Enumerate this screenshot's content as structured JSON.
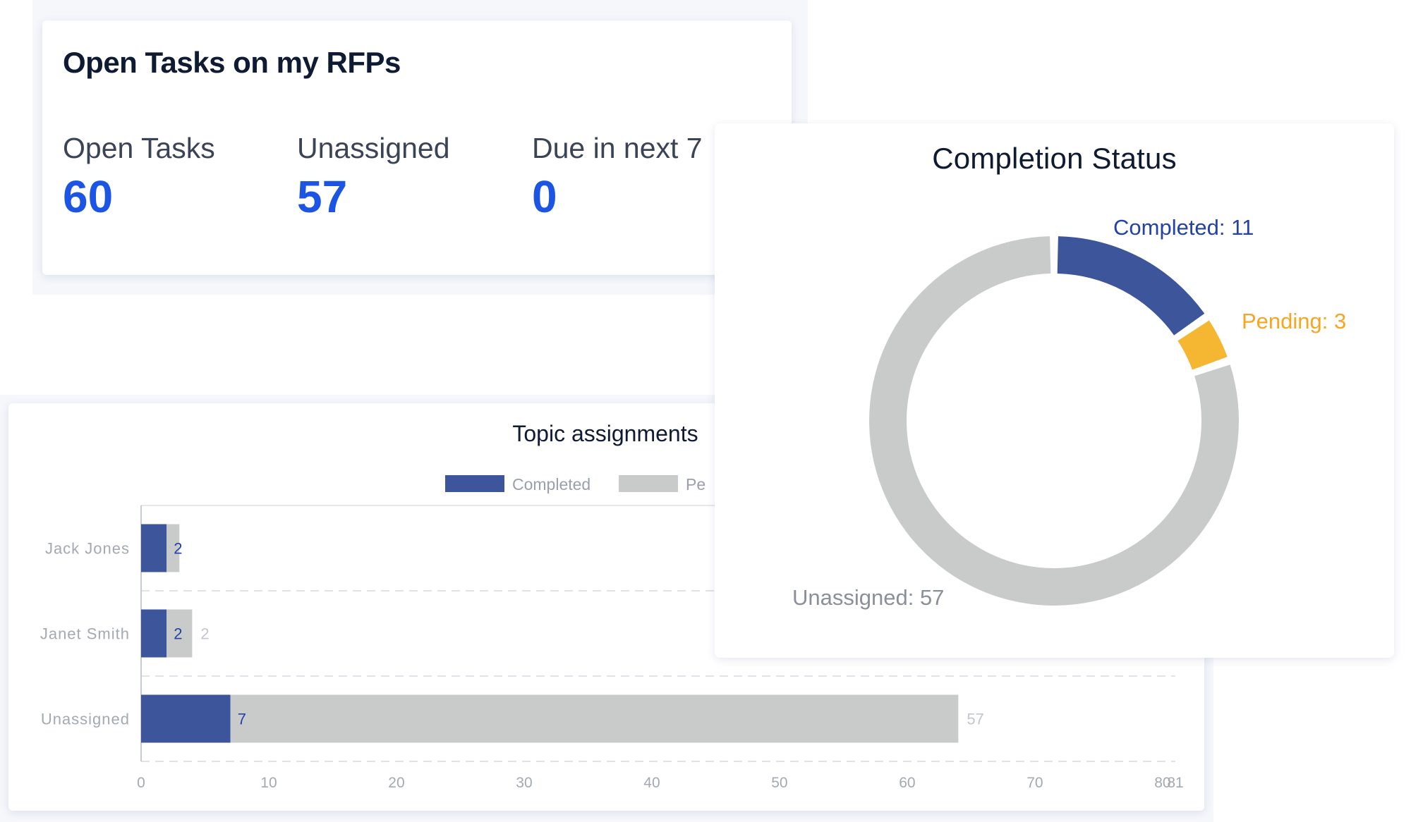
{
  "open_tasks_card": {
    "title": "Open Tasks on my RFPs",
    "stats": [
      {
        "label": "Open Tasks",
        "value": "60"
      },
      {
        "label": "Unassigned",
        "value": "57"
      },
      {
        "label": "Due in next 7",
        "value": "0"
      }
    ]
  },
  "topic_assignments_card": {
    "title": "Topic assignments",
    "legend": [
      "Completed",
      "Pe"
    ]
  },
  "completion_status_card": {
    "title": "Completion Status",
    "labels": {
      "completed": "Completed: 11",
      "pending": "Pending: 3",
      "unassigned": "Unassigned: 57"
    }
  },
  "colors": {
    "accent_blue": "#1c55e3",
    "completed": "#3d559b",
    "pending": "#f5b731",
    "unassigned": "#c9cbcb",
    "title_text": "#0f1a33"
  },
  "chart_data": [
    {
      "type": "bar",
      "orientation": "horizontal",
      "stacked": true,
      "title": "Topic assignments",
      "categories": [
        "Jack Jones",
        "Janet Smith",
        "Unassigned"
      ],
      "series": [
        {
          "name": "Completed",
          "values": [
            2,
            2,
            7
          ],
          "data_labels": [
            "2",
            "2",
            "7"
          ],
          "color": "#3d559b"
        },
        {
          "name": "Pe",
          "values": [
            1,
            2,
            57
          ],
          "data_labels": [
            "",
            "2",
            "57"
          ],
          "color": "#c9cbcb"
        }
      ],
      "xlim": [
        0,
        81
      ],
      "x_ticks": [
        "0",
        "10",
        "20",
        "30",
        "40",
        "50",
        "60",
        "70",
        "80",
        "81"
      ],
      "legend_position": "top",
      "grid": true
    },
    {
      "type": "pie",
      "donut": true,
      "title": "Completion Status",
      "slices": [
        {
          "name": "Completed",
          "value": 11,
          "label": "Completed: 11",
          "color": "#3d559b"
        },
        {
          "name": "Pending",
          "value": 3,
          "label": "Pending: 3",
          "color": "#f5b731"
        },
        {
          "name": "Unassigned",
          "value": 57,
          "label": "Unassigned: 57",
          "color": "#c9cbcb"
        }
      ]
    }
  ]
}
